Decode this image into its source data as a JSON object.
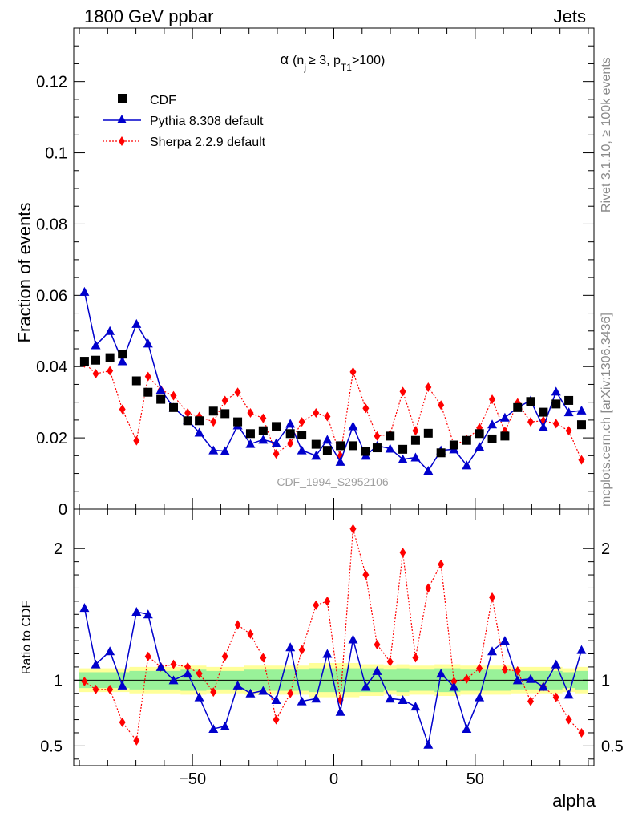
{
  "header": {
    "left": "1800 GeV ppbar",
    "right": "Jets"
  },
  "side_labels": {
    "rivet": "Rivet 3.1.10, ≥ 100k events",
    "mcplots": "mcplots.cern.ch [arXiv:1306.3436]"
  },
  "chart_data": [
    {
      "type": "scatter",
      "title": "α (n_j ≥ 3, p_T1 > 100)",
      "title_parts": {
        "alpha": "α",
        "open": "(n",
        "sub_j": "j",
        "ge": "≥ 3, p",
        "sub_t1": "T1",
        "close": ">100)"
      },
      "ylabel": "Fraction of events",
      "xlim": [
        -92,
        92
      ],
      "ylim": [
        0,
        0.135
      ],
      "yticks": [
        0,
        0.02,
        0.04,
        0.06,
        0.08,
        0.1,
        0.12
      ],
      "ytick_labels": [
        "0",
        "0.02",
        "0.04",
        "0.06",
        "0.08",
        "0.1",
        "0.12"
      ],
      "watermark": "CDF_1994_S2952106",
      "legend_position": "top-left",
      "x": [
        -88.2,
        -84.2,
        -79.2,
        -74.8,
        -69.8,
        -65.7,
        -61.2,
        -56.7,
        -51.7,
        -47.6,
        -42.6,
        -38.5,
        -34.0,
        -29.5,
        -25.0,
        -20.4,
        -15.4,
        -11.3,
        -6.3,
        -2.3,
        2.3,
        6.8,
        11.3,
        15.3,
        19.9,
        24.4,
        28.9,
        33.4,
        37.9,
        42.5,
        47.0,
        51.5,
        56.0,
        60.5,
        65.0,
        69.6,
        74.1,
        78.6,
        83.1,
        87.6
      ],
      "series": [
        {
          "name": "CDF",
          "color": "#000000",
          "marker": "square",
          "values": [
            0.0415,
            0.0418,
            0.0425,
            0.0435,
            0.036,
            0.0328,
            0.0308,
            0.0285,
            0.0248,
            0.0248,
            0.0275,
            0.0268,
            0.0245,
            0.0212,
            0.022,
            0.0232,
            0.0212,
            0.0208,
            0.0182,
            0.0165,
            0.0178,
            0.0178,
            0.0162,
            0.0172,
            0.0205,
            0.0168,
            0.0193,
            0.0213,
            0.0158,
            0.018,
            0.0193,
            0.0212,
            0.0197,
            0.0205,
            0.0285,
            0.0302,
            0.0272,
            0.0295,
            0.0305,
            0.0237
          ]
        },
        {
          "name": "Pythia 8.308 default",
          "color": "#0000cc",
          "marker": "triangle",
          "values": [
            0.061,
            0.046,
            0.05,
            0.0415,
            0.052,
            0.0465,
            0.0335,
            0.0285,
            0.025,
            0.0215,
            0.0165,
            0.0163,
            0.0235,
            0.0183,
            0.0195,
            0.0185,
            0.024,
            0.0165,
            0.015,
            0.0195,
            0.0133,
            0.0233,
            0.015,
            0.0178,
            0.017,
            0.014,
            0.0145,
            0.0108,
            0.0165,
            0.0168,
            0.0123,
            0.0175,
            0.0238,
            0.0257,
            0.0285,
            0.0305,
            0.023,
            0.033,
            0.0272,
            0.0277
          ]
        },
        {
          "name": "Sherpa 2.2.9 default",
          "color": "#ff0000",
          "marker": "diamond",
          "values": [
            0.041,
            0.038,
            0.0388,
            0.028,
            0.0192,
            0.0372,
            0.0335,
            0.0318,
            0.027,
            0.026,
            0.0245,
            0.0305,
            0.0328,
            0.027,
            0.0255,
            0.0155,
            0.0185,
            0.0245,
            0.027,
            0.026,
            0.015,
            0.0385,
            0.0283,
            0.0205,
            0.021,
            0.033,
            0.022,
            0.0342,
            0.0292,
            0.018,
            0.0195,
            0.0228,
            0.0308,
            0.0218,
            0.0298,
            0.0245,
            0.0248,
            0.024,
            0.022,
            0.0138
          ]
        }
      ]
    },
    {
      "type": "line",
      "ylabel": "Ratio to CDF",
      "xlabel": "alpha",
      "xlim": [
        -92,
        92
      ],
      "ylim": [
        0.35,
        2.3
      ],
      "yticks": [
        0.5,
        1,
        2
      ],
      "ytick_labels": [
        "0.5",
        "1",
        "2"
      ],
      "xticks": [
        -50,
        0,
        50
      ],
      "xtick_labels": [
        "−50",
        "0",
        "50"
      ],
      "band_inner_halfwidth": [
        0.06,
        0.06,
        0.06,
        0.06,
        0.07,
        0.07,
        0.07,
        0.07,
        0.08,
        0.08,
        0.07,
        0.07,
        0.07,
        0.08,
        0.08,
        0.08,
        0.08,
        0.08,
        0.09,
        0.09,
        0.09,
        0.09,
        0.09,
        0.09,
        0.08,
        0.09,
        0.08,
        0.08,
        0.09,
        0.09,
        0.08,
        0.08,
        0.08,
        0.08,
        0.07,
        0.07,
        0.07,
        0.07,
        0.06,
        0.07
      ],
      "band_outer_halfwidth": [
        0.09,
        0.09,
        0.09,
        0.09,
        0.1,
        0.1,
        0.1,
        0.1,
        0.11,
        0.11,
        0.1,
        0.1,
        0.1,
        0.11,
        0.11,
        0.11,
        0.11,
        0.11,
        0.13,
        0.13,
        0.13,
        0.13,
        0.12,
        0.12,
        0.11,
        0.12,
        0.11,
        0.11,
        0.12,
        0.12,
        0.11,
        0.11,
        0.11,
        0.11,
        0.1,
        0.1,
        0.1,
        0.1,
        0.09,
        0.1
      ],
      "series": [
        {
          "name": "Pythia 8.308 default",
          "color": "#0000cc",
          "marker": "triangle",
          "values": [
            1.55,
            1.12,
            1.22,
            0.96,
            1.52,
            1.5,
            1.1,
            1.0,
            1.05,
            0.87,
            0.63,
            0.65,
            0.96,
            0.9,
            0.92,
            0.85,
            1.25,
            0.84,
            0.86,
            1.2,
            0.76,
            1.31,
            0.95,
            1.07,
            0.86,
            0.85,
            0.8,
            0.51,
            1.05,
            0.95,
            0.63,
            0.87,
            1.22,
            1.3,
            1.0,
            1.01,
            0.95,
            1.12,
            0.89,
            1.23
          ]
        },
        {
          "name": "Sherpa 2.2.9 default",
          "color": "#ff0000",
          "marker": "diamond",
          "values": [
            0.99,
            0.93,
            0.93,
            0.68,
            0.54,
            1.18,
            1.1,
            1.12,
            1.1,
            1.05,
            0.91,
            1.18,
            1.42,
            1.35,
            1.17,
            0.7,
            0.9,
            1.23,
            1.57,
            1.6,
            0.85,
            2.15,
            1.8,
            1.27,
            1.14,
            1.97,
            1.17,
            1.7,
            1.88,
            0.99,
            1.01,
            1.09,
            1.63,
            1.08,
            1.07,
            0.84,
            0.95,
            0.87,
            0.7,
            0.6
          ]
        }
      ]
    }
  ]
}
